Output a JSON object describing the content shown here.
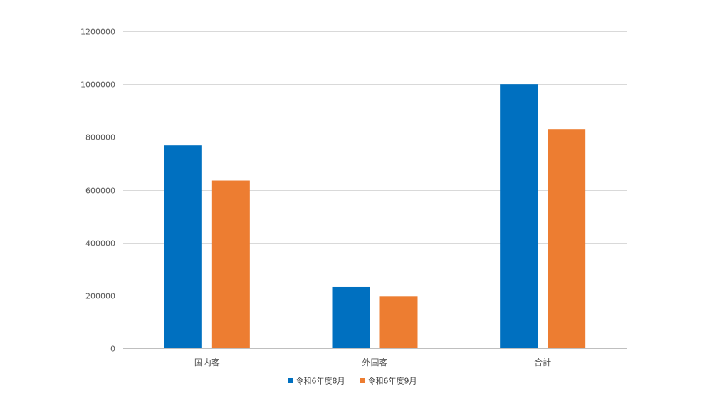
{
  "chart_data": {
    "type": "bar",
    "categories": [
      "国内客",
      "外国客",
      "合計"
    ],
    "series": [
      {
        "name": "令和6年度8月",
        "color": "#0070C0",
        "values": [
          768000,
          232000,
          1000000
        ]
      },
      {
        "name": "令和6年度9月",
        "color": "#ED7D31",
        "values": [
          635000,
          196000,
          830000
        ]
      }
    ],
    "ylim": [
      0,
      1200000
    ],
    "yticks": [
      0,
      200000,
      400000,
      600000,
      800000,
      1000000,
      1200000
    ],
    "grid": true,
    "legend_position": "bottom"
  }
}
